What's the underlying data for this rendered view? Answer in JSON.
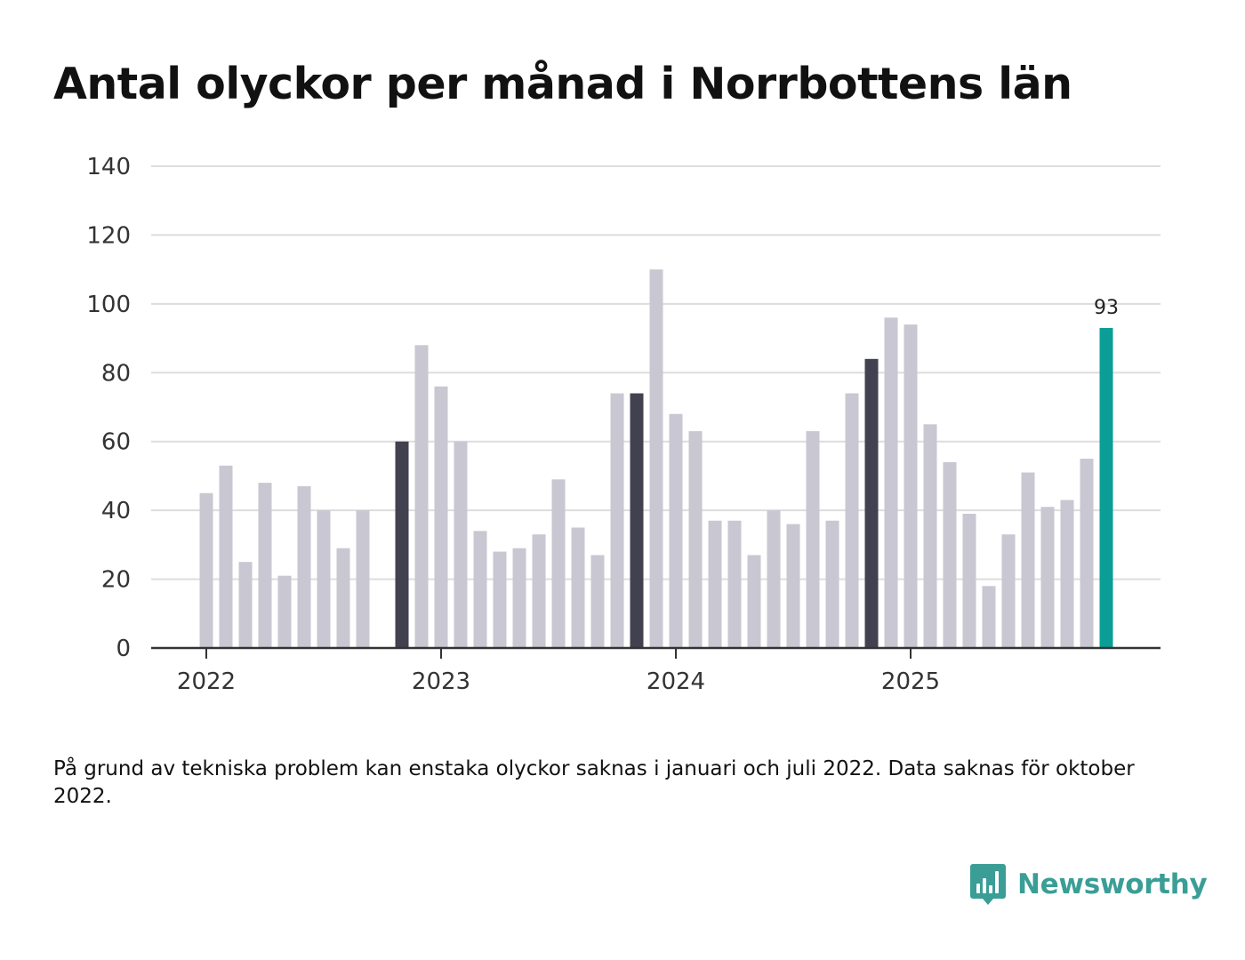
{
  "page": {
    "title": "Antal olyckor per månad i Norrbottens län",
    "footnote": "På grund av tekniska problem kan enstaka olyckor saknas i januari och juli 2022. Data saknas för oktober 2022.",
    "brand": "Newsworthy"
  },
  "colors": {
    "bar_default": "#c8c7d2",
    "bar_january": "#42414f",
    "bar_latest": "#0a9e96",
    "gridline": "#dddddd",
    "axis": "#333333",
    "brand": "#3a9e96"
  },
  "chart_data": {
    "type": "bar",
    "title": "Antal olyckor per månad i Norrbottens län",
    "xlabel": "",
    "ylabel": "",
    "ylim": [
      0,
      140
    ],
    "yticks": [
      0,
      20,
      40,
      60,
      80,
      100,
      120,
      140
    ],
    "grid": true,
    "x_tick_labels": [
      {
        "label": "2022",
        "month_index": 0
      },
      {
        "label": "2023",
        "month_index": 12
      },
      {
        "label": "2024",
        "month_index": 24
      },
      {
        "label": "2025",
        "month_index": 36
      }
    ],
    "categories": [
      "2022-01",
      "2022-02",
      "2022-03",
      "2022-04",
      "2022-05",
      "2022-06",
      "2022-07",
      "2022-08",
      "2022-09",
      "2022-10",
      "2022-11",
      "2022-12",
      "2023-01",
      "2023-02",
      "2023-03",
      "2023-04",
      "2023-05",
      "2023-06",
      "2023-07",
      "2023-08",
      "2023-09",
      "2023-10",
      "2023-11",
      "2023-12",
      "2024-01",
      "2024-02",
      "2024-03",
      "2024-04",
      "2024-05",
      "2024-06",
      "2024-07",
      "2024-08",
      "2024-09",
      "2024-10",
      "2024-11",
      "2024-12",
      "2025-01",
      "2025-02",
      "2025-03",
      "2025-04",
      "2025-05",
      "2025-06",
      "2025-07",
      "2025-08",
      "2025-09",
      "2025-10",
      "2025-11",
      "2025-12",
      "2026-01"
    ],
    "values": [
      45,
      53,
      25,
      48,
      21,
      47,
      40,
      29,
      40,
      null,
      60,
      88,
      76,
      60,
      34,
      28,
      29,
      33,
      49,
      35,
      27,
      74,
      74,
      110,
      68,
      63,
      37,
      37,
      27,
      40,
      36,
      63,
      37,
      74,
      84,
      96,
      94,
      65,
      54,
      39,
      18,
      33,
      51,
      41,
      43,
      55,
      93,
      null,
      null
    ],
    "highlighted_dark": [
      10,
      22,
      34
    ],
    "highlighted_latest": 46,
    "value_labels": [
      {
        "index": 46,
        "text": "93"
      }
    ]
  }
}
